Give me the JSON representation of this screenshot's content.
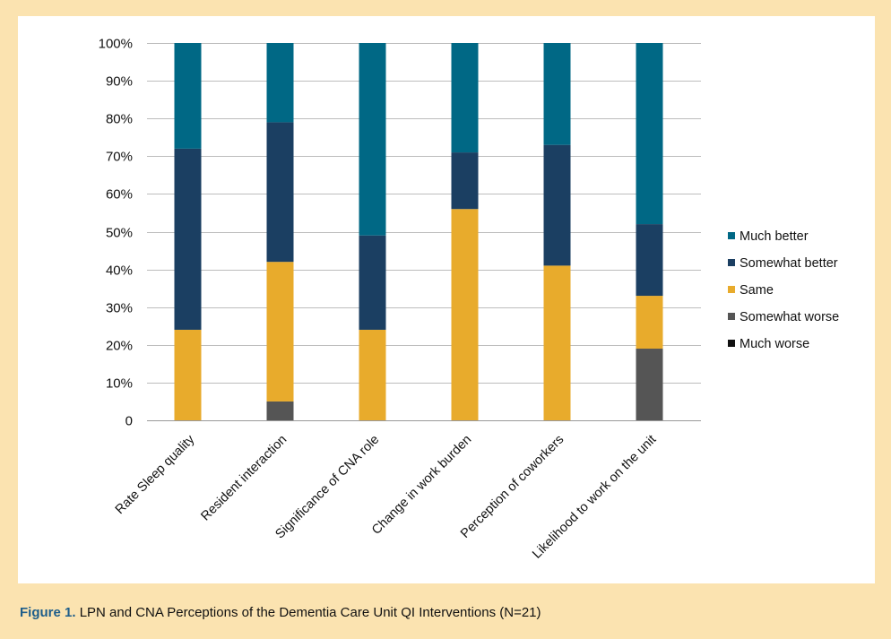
{
  "chart_data": {
    "type": "bar",
    "stacked": true,
    "categories": [
      "Rate Sleep quality",
      "Resident interaction",
      "Significance of CNA role",
      "Change in work burden",
      "Perception of coworkers",
      "Likelihood to work on the unit"
    ],
    "series": [
      {
        "name": "Much worse",
        "color": "#111111",
        "values": [
          0,
          0,
          0,
          0,
          0,
          0
        ]
      },
      {
        "name": "Somewhat worse",
        "color": "#555555",
        "values": [
          0,
          5,
          0,
          0,
          0,
          19
        ]
      },
      {
        "name": "Same",
        "color": "#e8ab2c",
        "values": [
          24,
          37,
          24,
          56,
          41,
          14
        ]
      },
      {
        "name": "Somewhat better",
        "color": "#1b3f62",
        "values": [
          48,
          37,
          25,
          15,
          32,
          19
        ]
      },
      {
        "name": "Much better",
        "color": "#006885",
        "values": [
          28,
          21,
          51,
          29,
          27,
          48
        ]
      }
    ],
    "y_ticks": [
      "0",
      "10%",
      "20%",
      "30%",
      "40%",
      "50%",
      "60%",
      "70%",
      "80%",
      "90%",
      "100%"
    ],
    "ylim": [
      0,
      100
    ],
    "legend_order": [
      "Much better",
      "Somewhat better",
      "Same",
      "Somewhat worse",
      "Much worse"
    ],
    "legend_position": "right",
    "grid": true
  },
  "caption": {
    "label": "Figure 1.",
    "text": "LPN and CNA Perceptions of the Dementia Care Unit QI Interventions (N=21)"
  }
}
